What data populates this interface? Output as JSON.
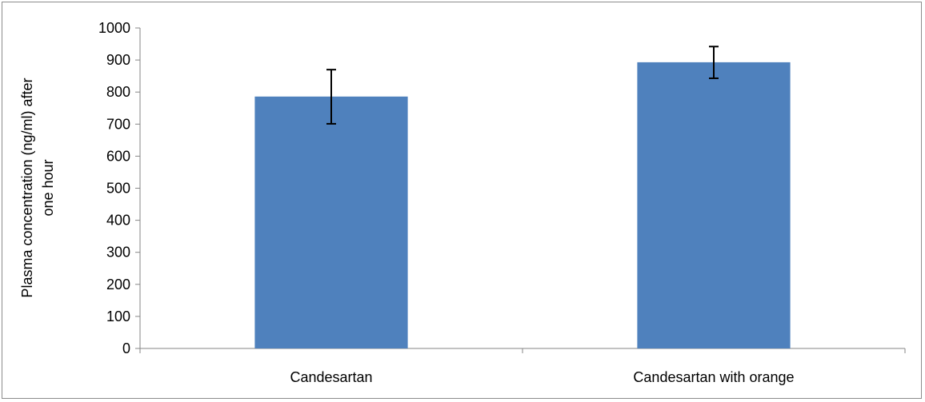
{
  "chart_data": {
    "type": "bar",
    "title": "",
    "xlabel": "",
    "ylabel_lines": [
      "Plasma concentration (ng/ml) after",
      "one hour"
    ],
    "categories": [
      "Candesartan",
      "Candesartan with orange"
    ],
    "values": [
      786,
      893
    ],
    "error_bars": [
      {
        "low": 701,
        "high": 870
      },
      {
        "low": 843,
        "high": 942
      }
    ],
    "ylim": [
      0,
      1000
    ],
    "y_ticks": [
      "0",
      "100",
      "200",
      "300",
      "400",
      "500",
      "600",
      "700",
      "800",
      "900",
      "1000"
    ],
    "grid": false,
    "legend": "none",
    "bar_color": "#4f81bd"
  }
}
